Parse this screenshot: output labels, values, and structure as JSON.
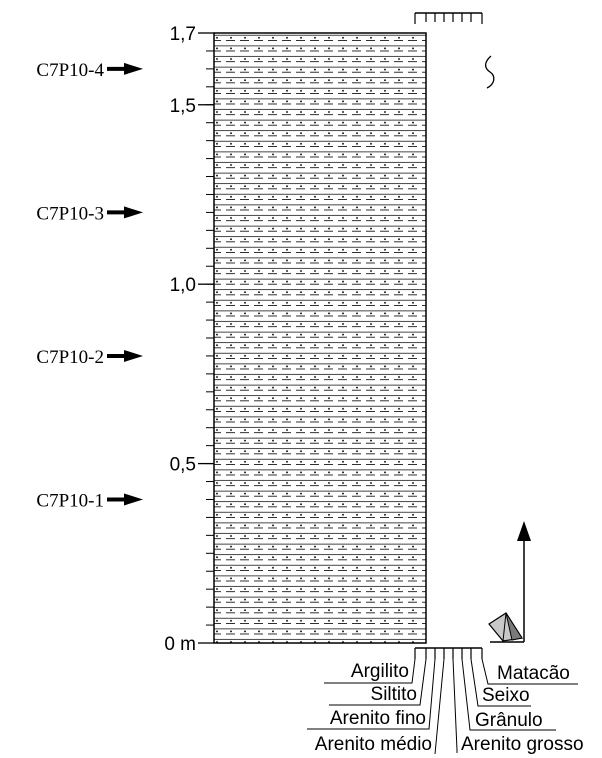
{
  "depth_axis": {
    "ticks": [
      {
        "value": 1.7,
        "label": "1,7"
      },
      {
        "value": 1.5,
        "label": "1,5"
      },
      {
        "value": 1.0,
        "label": "1,0"
      },
      {
        "value": 0.5,
        "label": "0,5"
      },
      {
        "value": 0.0,
        "label": "0 m"
      }
    ],
    "minor_step": 0.05,
    "range": [
      0,
      1.7
    ]
  },
  "samples": [
    {
      "label": "C7P10-4",
      "depth": 1.6
    },
    {
      "label": "C7P10-3",
      "depth": 1.2
    },
    {
      "label": "C7P10-2",
      "depth": 0.8
    },
    {
      "label": "C7P10-1",
      "depth": 0.4
    }
  ],
  "lithology": {
    "pattern": "siltstone-dashed-dotted",
    "color": "#000000"
  },
  "grain_size_scale": [
    {
      "label": "Argilito"
    },
    {
      "label": "Siltito"
    },
    {
      "label": "Arenito fino"
    },
    {
      "label": "Arenito médio"
    },
    {
      "label": "Arenito grosso"
    },
    {
      "label": "Grânulo"
    },
    {
      "label": "Seixo"
    },
    {
      "label": "Matacão"
    }
  ],
  "symbols": {
    "bioturbation": "burrow-icon",
    "paleocurrent": "north-arrow-icon",
    "clast": "clast-pyramid-icon"
  }
}
